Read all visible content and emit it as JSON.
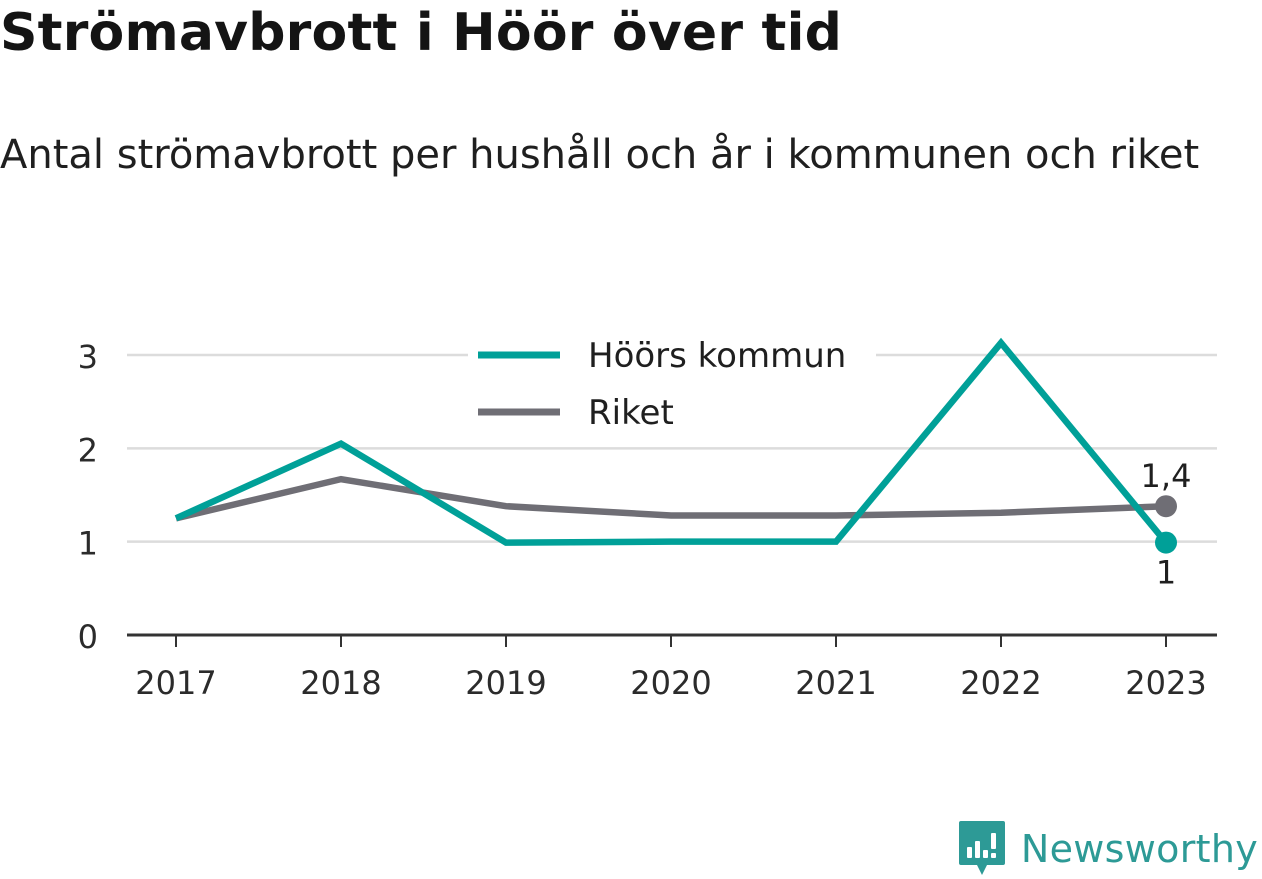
{
  "title": "Strömavbrott i Höör över tid",
  "subtitle": "Antal strömavbrott per hushåll och år i kommunen och riket",
  "brand": {
    "name": "Newsworthy",
    "icon": "newsworthy-logo-icon",
    "color": "#2d9a96"
  },
  "chart_data": {
    "type": "line",
    "title": "Strömavbrott i Höör över tid",
    "subtitle": "Antal strömavbrott per hushåll och år i kommunen och riket",
    "x": [
      "2017",
      "2018",
      "2019",
      "2020",
      "2021",
      "2022",
      "2023"
    ],
    "ylim": [
      0,
      3
    ],
    "yticks": [
      0,
      1,
      2,
      3
    ],
    "ytick_labels": [
      "0",
      "1",
      "2",
      "3"
    ],
    "grid": true,
    "legend_position": "top-center",
    "series": [
      {
        "name": "Höörs kommun",
        "color": "#00a098",
        "values": [
          1.25,
          2.05,
          0.99,
          1.0,
          1.0,
          3.13,
          0.99
        ],
        "end_label": "1",
        "end_label_position": "below"
      },
      {
        "name": "Riket",
        "color": "#6f6e75",
        "values": [
          1.25,
          1.67,
          1.38,
          1.28,
          1.28,
          1.31,
          1.38
        ],
        "end_label": "1,4",
        "end_label_position": "above"
      }
    ]
  }
}
